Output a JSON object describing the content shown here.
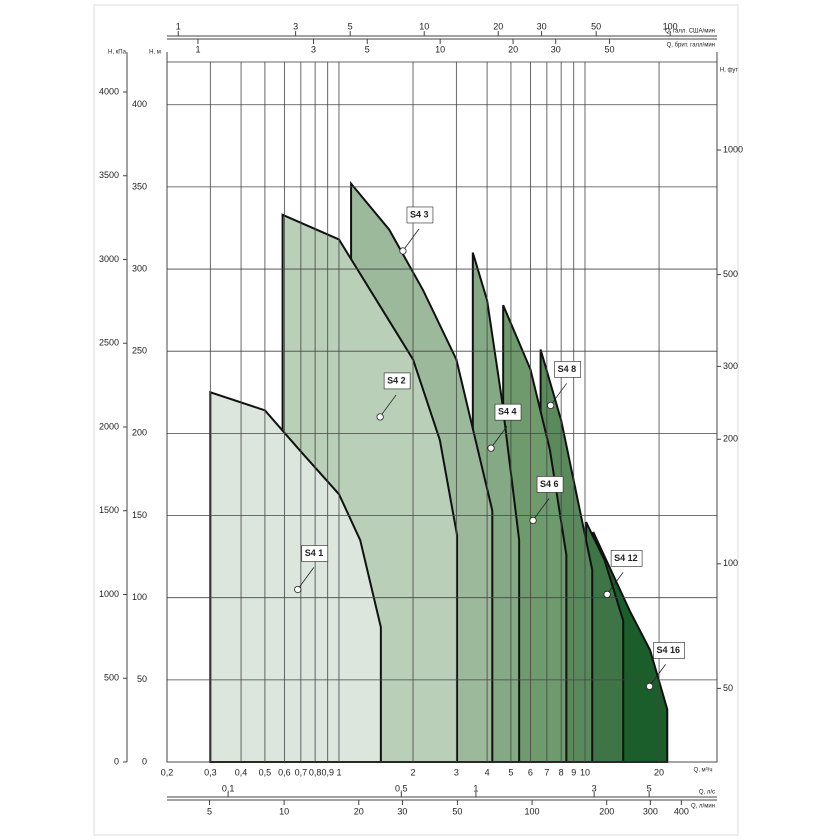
{
  "chart_data": {
    "type": "area",
    "xlim": [
      0.2,
      34.4
    ],
    "log_x": true,
    "xticks": [
      {
        "value": 0.2,
        "label": "0,2"
      },
      {
        "value": 0.3,
        "label": "0,3"
      },
      {
        "value": 0.4,
        "label": "0,4"
      },
      {
        "value": 0.5,
        "label": "0,5"
      },
      {
        "value": 0.6,
        "label": "0,6"
      },
      {
        "value": 0.7,
        "label": "0,7"
      },
      {
        "value": 0.8,
        "label": "0,8"
      },
      {
        "value": 0.9,
        "label": "0,9"
      },
      1,
      2,
      3,
      4,
      5,
      6,
      7,
      8,
      9,
      10,
      20
    ],
    "xlabel": "Q, м³/ч",
    "ylim": [
      0,
      426
    ],
    "yticks": [
      0,
      50,
      100,
      150,
      200,
      250,
      300,
      350,
      400
    ],
    "ylabel": "H, м",
    "grid": true,
    "kpa_axis": {
      "label": "H, кПа",
      "lim": [
        0,
        4179
      ],
      "ticks": [
        0,
        500,
        1000,
        1500,
        2000,
        2500,
        3000,
        3500,
        4000
      ]
    },
    "ft_axis": {
      "label": "H, фут",
      "lim": [
        33.2,
        1632
      ],
      "log": true,
      "ticks": [
        50,
        100,
        200,
        300,
        500,
        1000
      ]
    },
    "us_gpm_axis": {
      "label": "Q, галл. США/мин",
      "lim": [
        0.9,
        155
      ],
      "log": true,
      "ticks": [
        1,
        3,
        5,
        10,
        20,
        30,
        50,
        100
      ]
    },
    "imp_gpm_axis": {
      "label": "Q, брит. галл/мин",
      "lim": [
        0.745,
        139
      ],
      "log": true,
      "ticks": [
        1,
        3,
        5,
        10,
        20,
        30,
        50
      ]
    },
    "ls_axis": {
      "label": "Q, л/с",
      "lim": [
        0.0567,
        9.39
      ],
      "log": true,
      "ticks": [
        {
          "value": 0.1,
          "label": "0,1"
        },
        {
          "value": 0.5,
          "label": "0,5"
        },
        1,
        3,
        5
      ]
    },
    "lmin_axis": {
      "label": "Q, л/мин",
      "lim": [
        3.37,
        557
      ],
      "log": true,
      "ticks": [
        5,
        10,
        20,
        30,
        50,
        100,
        200,
        300,
        400
      ]
    },
    "series": [
      {
        "name": "S4 16",
        "color": "#1b5e2b",
        "x": [
          10.8,
          15.2,
          18.4,
          21.6
        ],
        "values": [
          140,
          92,
          68,
          32
        ],
        "marker": {
          "x": 18.3,
          "y": 46
        }
      },
      {
        "name": "S4 12",
        "color": "#3f7447",
        "x": [
          10.1,
          12,
          14.3
        ],
        "values": [
          146,
          123,
          86
        ],
        "marker": {
          "x": 12.3,
          "y": 102
        }
      },
      {
        "name": "S4 8",
        "color": "#5a8a5c",
        "x": [
          6.6,
          8,
          10.7
        ],
        "values": [
          251,
          208,
          117
        ],
        "marker": {
          "x": 7.25,
          "y": 217
        }
      },
      {
        "name": "S4 6",
        "color": "#6e9a6e",
        "x": [
          4.65,
          6,
          7.2,
          8.4
        ],
        "values": [
          278,
          239,
          190,
          126
        ],
        "marker": {
          "x": 6.15,
          "y": 147
        }
      },
      {
        "name": "S4 4",
        "color": "#85a985",
        "x": [
          3.5,
          4,
          4.6,
          5.4
        ],
        "values": [
          310,
          281,
          220,
          135
        ],
        "marker": {
          "x": 4.15,
          "y": 191
        }
      },
      {
        "name": "S4 3",
        "color": "#9db99b",
        "x": [
          1.12,
          1.6,
          2.2,
          3,
          4.2
        ],
        "values": [
          352,
          324,
          287,
          245,
          153
        ],
        "marker": {
          "x": 1.82,
          "y": 311
        }
      },
      {
        "name": "S4 2",
        "color": "#b9cfb7",
        "x": [
          0.59,
          1,
          2,
          2.57,
          3.02
        ],
        "values": [
          333,
          318,
          245,
          196,
          138
        ],
        "marker": {
          "x": 1.47,
          "y": 210
        }
      },
      {
        "name": "S4 1",
        "color": "#dce6dc",
        "x": [
          0.3,
          0.5,
          0.69,
          1,
          1.22,
          1.48
        ],
        "values": [
          225,
          214,
          190,
          163,
          135,
          82
        ],
        "marker": {
          "x": 0.68,
          "y": 105
        }
      }
    ]
  }
}
